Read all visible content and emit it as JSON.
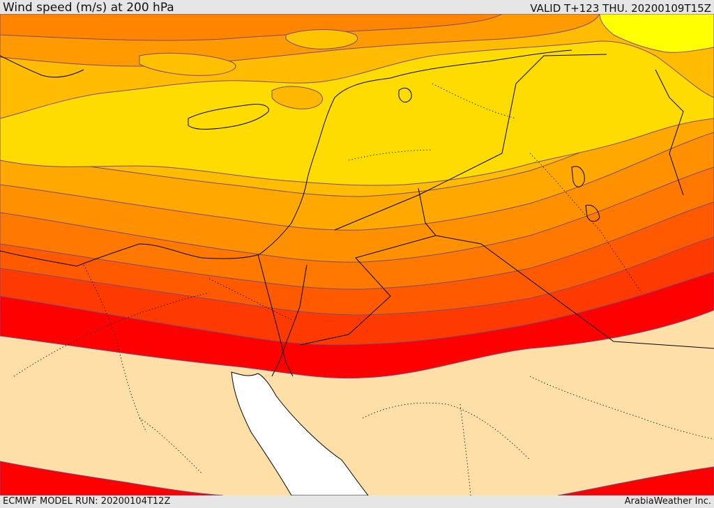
{
  "header": {
    "title": "Wind speed (m/s) at 200 hPa",
    "valid_time": "VALID T+123 THU. 20200109T15Z"
  },
  "footer": {
    "model_run": "ECMWF MODEL RUN: 20200104T12Z",
    "credit": "ArabiaWeather Inc."
  },
  "map": {
    "variable": "wind speed",
    "level": "200 hPa",
    "colors": {
      "land": "#ffdfa8",
      "sea": "#ffffff",
      "band_lightest": "#ffff00",
      "band_yellow": "#ffe000",
      "band_amber": "#ffb800",
      "band_orange": "#ff9a00",
      "band_dark_orange": "#ff7000",
      "band_red_orange": "#ff4a00",
      "band_red": "#ff0000",
      "contour": "#7a4a4a",
      "border": "#000000"
    }
  }
}
